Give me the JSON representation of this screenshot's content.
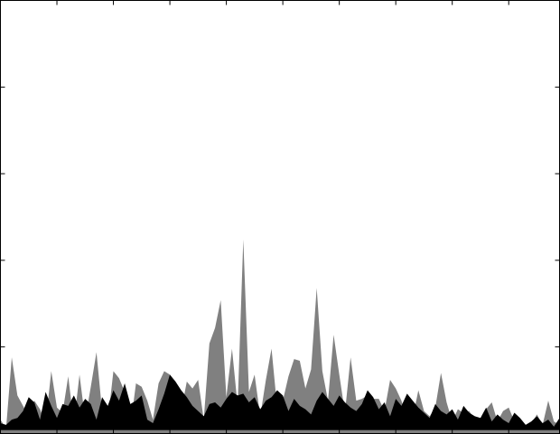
{
  "chart_data": {
    "type": "area",
    "x": [
      0,
      1,
      2,
      3,
      4,
      5,
      6,
      7,
      8,
      9,
      10,
      11,
      12,
      13,
      14,
      15,
      16,
      17,
      18,
      19,
      20,
      21,
      22,
      23,
      24,
      25,
      26,
      27,
      28,
      29,
      30,
      31,
      32,
      33,
      34,
      35,
      36,
      37,
      38,
      39,
      40,
      41,
      42,
      43,
      44,
      45,
      46,
      47,
      48,
      49,
      50,
      51,
      52,
      53,
      54,
      55,
      56,
      57,
      58,
      59,
      60,
      61,
      62,
      63,
      64,
      65,
      66,
      67,
      68,
      69,
      70,
      71,
      72,
      73,
      74,
      75,
      76,
      77,
      78,
      79,
      80,
      81,
      82,
      83,
      84,
      85,
      86,
      87,
      88,
      89,
      90,
      91,
      92,
      93,
      94,
      95,
      96,
      97,
      98,
      99
    ],
    "series": [
      {
        "color": "#808080",
        "values": [
          8,
          3,
          44,
          22,
          16,
          10,
          19,
          14,
          6,
          36,
          15,
          12,
          33,
          6,
          34,
          8,
          27,
          47,
          13,
          7,
          36,
          32,
          24,
          4,
          29,
          27,
          19,
          8,
          29,
          36,
          34,
          21,
          13,
          30,
          26,
          31,
          8,
          52,
          61,
          77,
          21,
          49,
          16,
          112,
          24,
          34,
          10,
          31,
          49,
          15,
          19,
          33,
          43,
          42,
          26,
          37,
          84,
          36,
          19,
          57,
          34,
          12,
          44,
          19,
          20,
          22,
          20,
          20,
          13,
          31,
          26,
          19,
          8,
          9,
          25,
          13,
          10,
          15,
          35,
          18,
          7,
          14,
          12,
          13,
          8,
          5,
          14,
          18,
          7,
          13,
          15,
          7,
          4,
          3,
          6,
          11,
          5,
          19,
          7,
          5
        ]
      },
      {
        "color": "#000000",
        "values": [
          6,
          5,
          8,
          9,
          13,
          21,
          18,
          8,
          24,
          16,
          9,
          17,
          16,
          22,
          15,
          20,
          17,
          8,
          21,
          16,
          25,
          19,
          29,
          17,
          19,
          22,
          8,
          6,
          14,
          23,
          34,
          30,
          25,
          21,
          16,
          13,
          10,
          17,
          18,
          15,
          20,
          24,
          22,
          23,
          18,
          21,
          14,
          19,
          21,
          25,
          22,
          13,
          20,
          16,
          14,
          11,
          19,
          24,
          20,
          16,
          22,
          18,
          15,
          13,
          17,
          25,
          21,
          14,
          18,
          10,
          20,
          16,
          23,
          19,
          15,
          12,
          9,
          17,
          13,
          11,
          14,
          8,
          16,
          12,
          10,
          9,
          15,
          7,
          11,
          8,
          6,
          12,
          9,
          5,
          7,
          10,
          6,
          8,
          4,
          9
        ]
      }
    ],
    "xlim": [
      0,
      99
    ],
    "ylim": [
      0,
      250
    ],
    "xticks": [
      0,
      10,
      20,
      30,
      40,
      50,
      60,
      70,
      80,
      90
    ],
    "yticks": [
      0,
      50,
      100,
      150,
      200,
      250
    ],
    "grid": false,
    "legend": "none"
  }
}
